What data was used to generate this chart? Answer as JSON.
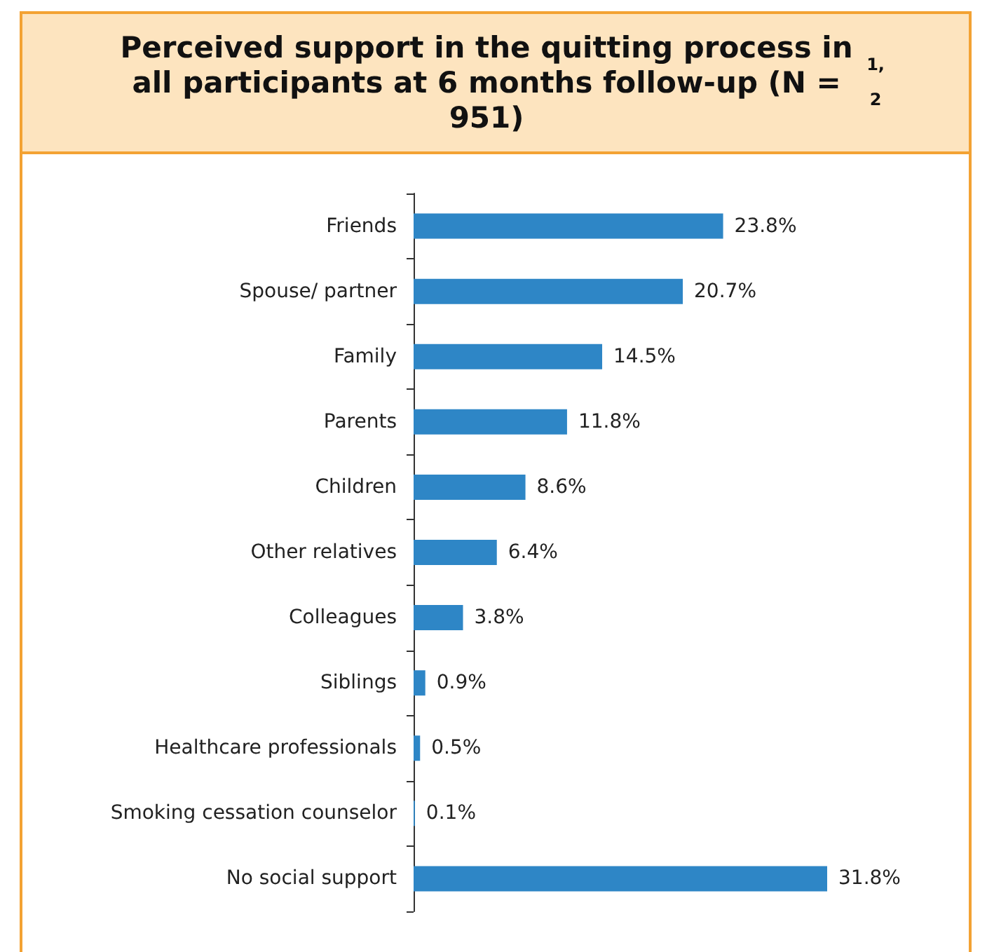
{
  "chart_data": {
    "type": "bar",
    "orientation": "horizontal",
    "title": "Perceived support in the quitting process in all participants at 6 months follow-up (N = 951) $^{1, 2}$",
    "categories": [
      "Friends",
      "Spouse/ partner",
      "Family",
      "Parents",
      "Children",
      "Other relatives",
      "Colleagues",
      "Siblings",
      "Healthcare professionals",
      "Smoking cessation counselor",
      "No social support"
    ],
    "values": [
      23.8,
      20.7,
      14.5,
      11.8,
      8.6,
      6.4,
      3.8,
      0.9,
      0.5,
      0.1,
      31.8
    ],
    "value_labels": [
      "23.8%",
      "20.7%",
      "14.5%",
      "11.8%",
      "8.6%",
      "6.4%",
      "3.8%",
      "0.9%",
      "0.5%",
      "0.1%",
      "31.8%"
    ],
    "color": "#2e86c6"
  }
}
